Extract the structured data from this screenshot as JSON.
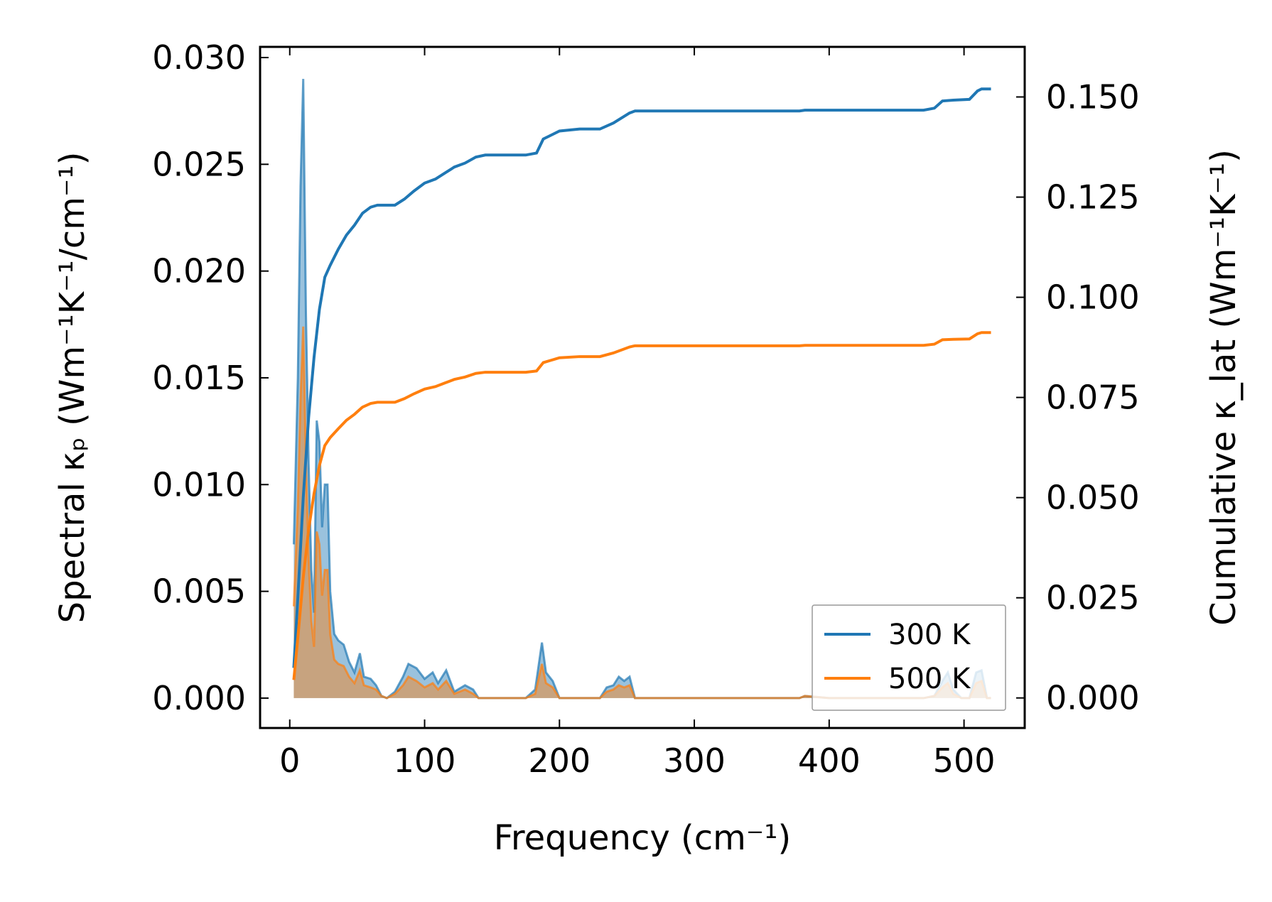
{
  "chart_data": {
    "type": "line",
    "xlabel": "Frequency (cm⁻¹)",
    "ylabel_left": "Spectral κₚ (Wm⁻¹K⁻¹/cm⁻¹)",
    "ylabel_right": "Cumulative κ_lat (Wm⁻¹K⁻¹)",
    "xlim": [
      -22,
      545
    ],
    "ylim_left": [
      -0.0014,
      0.0305
    ],
    "ylim_right": [
      -0.0075,
      0.1625
    ],
    "x_ticks": [
      0,
      100,
      200,
      300,
      400,
      500
    ],
    "y_ticks_left": [
      0.0,
      0.005,
      0.01,
      0.015,
      0.02,
      0.025,
      0.03
    ],
    "y_ticks_right": [
      0.0,
      0.025,
      0.05,
      0.075,
      0.1,
      0.125,
      0.15
    ],
    "x_tick_labels": [
      "0",
      "100",
      "200",
      "300",
      "400",
      "500"
    ],
    "y_tick_labels_left": [
      "0.000",
      "0.005",
      "0.010",
      "0.015",
      "0.020",
      "0.025",
      "0.030"
    ],
    "y_tick_labels_right": [
      "0.000",
      "0.025",
      "0.050",
      "0.075",
      "0.100",
      "0.125",
      "0.150"
    ],
    "legend_position": "lower-right",
    "grid": false,
    "series": [
      {
        "name": "300 K",
        "color": "#1f77b4",
        "spectral": [
          [
            3,
            0.0072
          ],
          [
            6,
            0.015
          ],
          [
            8,
            0.024
          ],
          [
            10,
            0.029
          ],
          [
            12,
            0.018
          ],
          [
            14,
            0.011
          ],
          [
            16,
            0.006
          ],
          [
            18,
            0.004
          ],
          [
            20,
            0.013
          ],
          [
            22,
            0.012
          ],
          [
            24,
            0.008
          ],
          [
            26,
            0.01
          ],
          [
            28,
            0.01
          ],
          [
            30,
            0.005
          ],
          [
            33,
            0.003
          ],
          [
            36,
            0.0027
          ],
          [
            40,
            0.0025
          ],
          [
            44,
            0.0017
          ],
          [
            48,
            0.0012
          ],
          [
            52,
            0.0021
          ],
          [
            55,
            0.001
          ],
          [
            60,
            0.0009
          ],
          [
            64,
            0.0006
          ],
          [
            68,
            0.0001
          ],
          [
            72,
            0.0
          ],
          [
            78,
            0.0003
          ],
          [
            84,
            0.001
          ],
          [
            88,
            0.0016
          ],
          [
            94,
            0.0014
          ],
          [
            100,
            0.0009
          ],
          [
            106,
            0.0012
          ],
          [
            110,
            0.0007
          ],
          [
            116,
            0.0013
          ],
          [
            122,
            0.0003
          ],
          [
            130,
            0.0006
          ],
          [
            136,
            0.0004
          ],
          [
            140,
            0.0
          ],
          [
            160,
            0.0
          ],
          [
            175,
            0.0
          ],
          [
            182,
            0.0004
          ],
          [
            187,
            0.0026
          ],
          [
            190,
            0.0012
          ],
          [
            195,
            0.0008
          ],
          [
            200,
            0.0
          ],
          [
            230,
            0.0
          ],
          [
            235,
            0.0005
          ],
          [
            240,
            0.0006
          ],
          [
            244,
            0.001
          ],
          [
            248,
            0.0008
          ],
          [
            252,
            0.001
          ],
          [
            256,
            0.0
          ],
          [
            300,
            0.0
          ],
          [
            350,
            0.0
          ],
          [
            378,
            0.0
          ],
          [
            382,
            0.0001
          ],
          [
            400,
            0.0
          ],
          [
            450,
            0.0
          ],
          [
            470,
            0.0
          ],
          [
            478,
            0.0001
          ],
          [
            484,
            0.0008
          ],
          [
            488,
            0.0012
          ],
          [
            492,
            0.0004
          ],
          [
            498,
            0.0
          ],
          [
            504,
            0.0
          ],
          [
            509,
            0.0012
          ],
          [
            513,
            0.0013
          ],
          [
            517,
            0.0
          ],
          [
            520,
            0.0
          ]
        ],
        "cumulative": [
          [
            3,
            0.0075
          ],
          [
            6,
            0.025
          ],
          [
            10,
            0.05
          ],
          [
            14,
            0.07
          ],
          [
            18,
            0.085
          ],
          [
            22,
            0.097
          ],
          [
            26,
            0.105
          ],
          [
            30,
            0.108
          ],
          [
            36,
            0.112
          ],
          [
            42,
            0.1155
          ],
          [
            48,
            0.118
          ],
          [
            54,
            0.121
          ],
          [
            60,
            0.1225
          ],
          [
            65,
            0.123
          ],
          [
            70,
            0.123
          ],
          [
            78,
            0.123
          ],
          [
            85,
            0.1245
          ],
          [
            92,
            0.1265
          ],
          [
            100,
            0.1285
          ],
          [
            108,
            0.1295
          ],
          [
            115,
            0.131
          ],
          [
            122,
            0.1325
          ],
          [
            130,
            0.1335
          ],
          [
            138,
            0.135
          ],
          [
            145,
            0.1355
          ],
          [
            160,
            0.1355
          ],
          [
            175,
            0.1355
          ],
          [
            183,
            0.136
          ],
          [
            188,
            0.1395
          ],
          [
            194,
            0.1405
          ],
          [
            200,
            0.1415
          ],
          [
            215,
            0.142
          ],
          [
            230,
            0.142
          ],
          [
            240,
            0.1435
          ],
          [
            252,
            0.146
          ],
          [
            256,
            0.1465
          ],
          [
            300,
            0.1465
          ],
          [
            350,
            0.1465
          ],
          [
            378,
            0.1465
          ],
          [
            382,
            0.1467
          ],
          [
            420,
            0.1467
          ],
          [
            470,
            0.1467
          ],
          [
            478,
            0.1472
          ],
          [
            484,
            0.149
          ],
          [
            492,
            0.1492
          ],
          [
            504,
            0.1494
          ],
          [
            510,
            0.1515
          ],
          [
            513,
            0.152
          ],
          [
            520,
            0.152
          ]
        ]
      },
      {
        "name": "500 K",
        "color": "#ff7f0e",
        "spectral": [
          [
            3,
            0.0043
          ],
          [
            6,
            0.009
          ],
          [
            8,
            0.014
          ],
          [
            10,
            0.0174
          ],
          [
            12,
            0.011
          ],
          [
            14,
            0.0065
          ],
          [
            16,
            0.0036
          ],
          [
            18,
            0.0024
          ],
          [
            20,
            0.0078
          ],
          [
            22,
            0.0072
          ],
          [
            24,
            0.0048
          ],
          [
            26,
            0.006
          ],
          [
            28,
            0.006
          ],
          [
            30,
            0.003
          ],
          [
            33,
            0.0018
          ],
          [
            36,
            0.0016
          ],
          [
            40,
            0.0015
          ],
          [
            44,
            0.001
          ],
          [
            48,
            0.0007
          ],
          [
            52,
            0.0013
          ],
          [
            55,
            0.0006
          ],
          [
            60,
            0.0005
          ],
          [
            64,
            0.0004
          ],
          [
            68,
            0.0001
          ],
          [
            72,
            0.0
          ],
          [
            78,
            0.0002
          ],
          [
            84,
            0.0006
          ],
          [
            88,
            0.001
          ],
          [
            94,
            0.0008
          ],
          [
            100,
            0.0005
          ],
          [
            106,
            0.0007
          ],
          [
            110,
            0.0004
          ],
          [
            116,
            0.0008
          ],
          [
            122,
            0.0002
          ],
          [
            130,
            0.0004
          ],
          [
            136,
            0.0002
          ],
          [
            140,
            0.0
          ],
          [
            160,
            0.0
          ],
          [
            175,
            0.0
          ],
          [
            182,
            0.0002
          ],
          [
            187,
            0.0016
          ],
          [
            190,
            0.0007
          ],
          [
            195,
            0.0005
          ],
          [
            200,
            0.0
          ],
          [
            230,
            0.0
          ],
          [
            235,
            0.0003
          ],
          [
            240,
            0.0004
          ],
          [
            244,
            0.0006
          ],
          [
            248,
            0.0005
          ],
          [
            252,
            0.0006
          ],
          [
            256,
            0.0
          ],
          [
            300,
            0.0
          ],
          [
            350,
            0.0
          ],
          [
            378,
            0.0
          ],
          [
            382,
            0.0001
          ],
          [
            400,
            0.0
          ],
          [
            450,
            0.0
          ],
          [
            470,
            0.0
          ],
          [
            478,
            0.0001
          ],
          [
            484,
            0.0005
          ],
          [
            488,
            0.0007
          ],
          [
            492,
            0.0002
          ],
          [
            498,
            0.0
          ],
          [
            504,
            0.0
          ],
          [
            509,
            0.0007
          ],
          [
            513,
            0.0008
          ],
          [
            517,
            0.0
          ],
          [
            520,
            0.0
          ]
        ],
        "cumulative": [
          [
            3,
            0.0045
          ],
          [
            6,
            0.015
          ],
          [
            10,
            0.03
          ],
          [
            14,
            0.042
          ],
          [
            18,
            0.051
          ],
          [
            22,
            0.058
          ],
          [
            26,
            0.063
          ],
          [
            30,
            0.065
          ],
          [
            36,
            0.0672
          ],
          [
            42,
            0.0693
          ],
          [
            48,
            0.0708
          ],
          [
            54,
            0.0726
          ],
          [
            60,
            0.0735
          ],
          [
            65,
            0.0738
          ],
          [
            70,
            0.0738
          ],
          [
            78,
            0.0738
          ],
          [
            85,
            0.0747
          ],
          [
            92,
            0.0759
          ],
          [
            100,
            0.0771
          ],
          [
            108,
            0.0777
          ],
          [
            115,
            0.0786
          ],
          [
            122,
            0.0795
          ],
          [
            130,
            0.0801
          ],
          [
            138,
            0.081
          ],
          [
            145,
            0.0813
          ],
          [
            160,
            0.0813
          ],
          [
            175,
            0.0813
          ],
          [
            183,
            0.0816
          ],
          [
            188,
            0.0837
          ],
          [
            194,
            0.0843
          ],
          [
            200,
            0.0849
          ],
          [
            215,
            0.0852
          ],
          [
            230,
            0.0852
          ],
          [
            240,
            0.0861
          ],
          [
            252,
            0.0876
          ],
          [
            256,
            0.0879
          ],
          [
            300,
            0.0879
          ],
          [
            350,
            0.0879
          ],
          [
            378,
            0.0879
          ],
          [
            382,
            0.088
          ],
          [
            420,
            0.088
          ],
          [
            470,
            0.088
          ],
          [
            478,
            0.0883
          ],
          [
            484,
            0.0894
          ],
          [
            492,
            0.0895
          ],
          [
            504,
            0.0896
          ],
          [
            510,
            0.0909
          ],
          [
            513,
            0.0912
          ],
          [
            520,
            0.0912
          ]
        ]
      }
    ]
  }
}
